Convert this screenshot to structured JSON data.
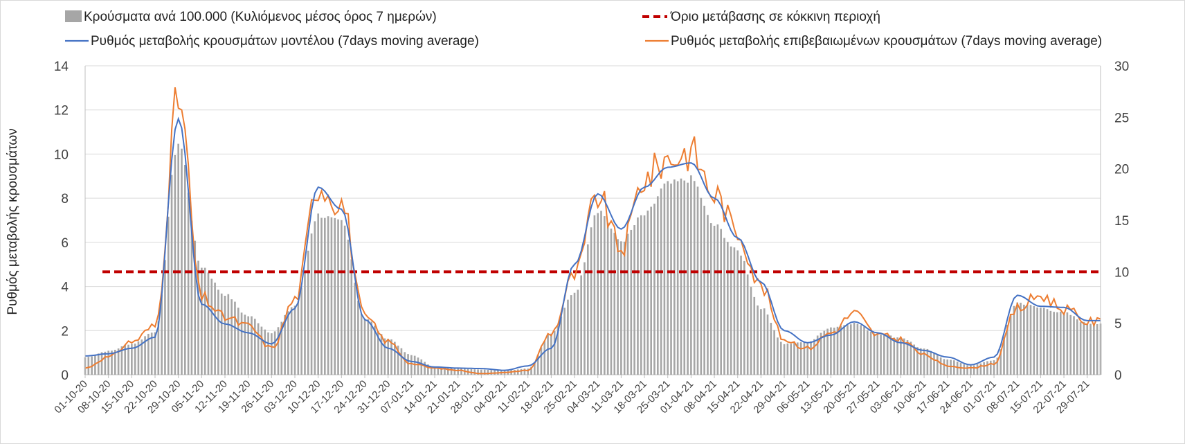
{
  "chart_data": {
    "type": "bar+line",
    "legend": {
      "bars": "Κρούσματα ανά 100.000 (Κυλιόμενος μέσος όρος 7 ημερών)",
      "threshold": "Όριο μετάβασης σε κόκκινη περιοχή",
      "model_line": "Ρυθμός μεταβολής κρουσμάτων μοντέλου (7days moving average)",
      "confirmed_line": "Ρυθμός μεταβολής επιβεβαιωμένων κρουσμάτων (7days moving average)"
    },
    "ylabel_left": "Ρυθμός μεταβολής κρουσμάτων",
    "y_left": {
      "min": 0,
      "max": 14,
      "ticks": [
        0,
        2,
        4,
        6,
        8,
        10,
        12,
        14
      ]
    },
    "y_right": {
      "min": 0,
      "max": 30,
      "ticks": [
        0,
        5,
        10,
        15,
        20,
        25,
        30
      ]
    },
    "threshold_right": 10,
    "x_tick_labels": [
      "01-10-20",
      "08-10-20",
      "15-10-20",
      "22-10-20",
      "29-10-20",
      "05-11-20",
      "12-11-20",
      "19-11-20",
      "26-11-20",
      "03-12-20",
      "10-12-20",
      "17-12-20",
      "24-12-20",
      "31-12-20",
      "07-01-21",
      "14-01-21",
      "21-01-21",
      "28-01-21",
      "04-02-21",
      "11-02-21",
      "18-02-21",
      "25-02-21",
      "04-03-21",
      "11-03-21",
      "18-03-21",
      "25-03-21",
      "01-04-21",
      "08-04-21",
      "15-04-21",
      "22-04-21",
      "29-04-21",
      "06-05-21",
      "13-05-21",
      "20-05-21",
      "27-05-21",
      "03-06-21",
      "10-06-21",
      "17-06-21",
      "24-06-21",
      "01-07-21",
      "08-07-21",
      "15-07-21",
      "22-07-21",
      "29-07-21"
    ],
    "n_days": 306,
    "bars_per100k_weekly_approx": [
      1.7,
      2.3,
      3.0,
      4.2,
      22.5,
      10.5,
      7.8,
      5.7,
      4.1,
      6.7,
      15.5,
      14.8,
      5.5,
      3.5,
      1.9,
      0.8,
      0.6,
      0.5,
      0.4,
      0.6,
      4.0,
      8.0,
      16.0,
      13.0,
      15.5,
      18.5,
      19.0,
      14.5,
      12.0,
      6.5,
      3.0,
      3.2,
      4.6,
      5.0,
      4.0,
      3.6,
      2.5,
      1.5,
      0.9,
      1.4,
      7.0,
      6.5,
      6.0,
      5.0
    ],
    "model_rate_weekly_approx": [
      0.85,
      0.95,
      1.2,
      1.7,
      11.6,
      3.2,
      2.3,
      1.9,
      1.4,
      3.0,
      8.5,
      7.5,
      2.5,
      1.2,
      0.6,
      0.35,
      0.3,
      0.28,
      0.2,
      0.4,
      1.2,
      5.0,
      8.2,
      6.6,
      8.5,
      9.4,
      9.6,
      8.0,
      6.2,
      4.2,
      2.0,
      1.45,
      1.8,
      2.4,
      1.9,
      1.45,
      1.1,
      0.8,
      0.45,
      0.8,
      3.6,
      3.1,
      3.05,
      2.45
    ],
    "confirmed_rate_weekly_approx": [
      0.3,
      0.8,
      1.5,
      2.2,
      12.5,
      3.5,
      2.6,
      2.2,
      1.2,
      3.4,
      8.6,
      7.8,
      2.6,
      1.5,
      0.5,
      0.3,
      0.2,
      0.05,
      0.1,
      0.2,
      1.9,
      4.5,
      8.1,
      5.7,
      8.9,
      9.8,
      10.1,
      8.2,
      6.5,
      4.0,
      1.6,
      1.2,
      1.9,
      2.8,
      1.8,
      1.6,
      0.9,
      0.4,
      0.3,
      0.5,
      3.0,
      3.6,
      3.0,
      2.4
    ]
  }
}
